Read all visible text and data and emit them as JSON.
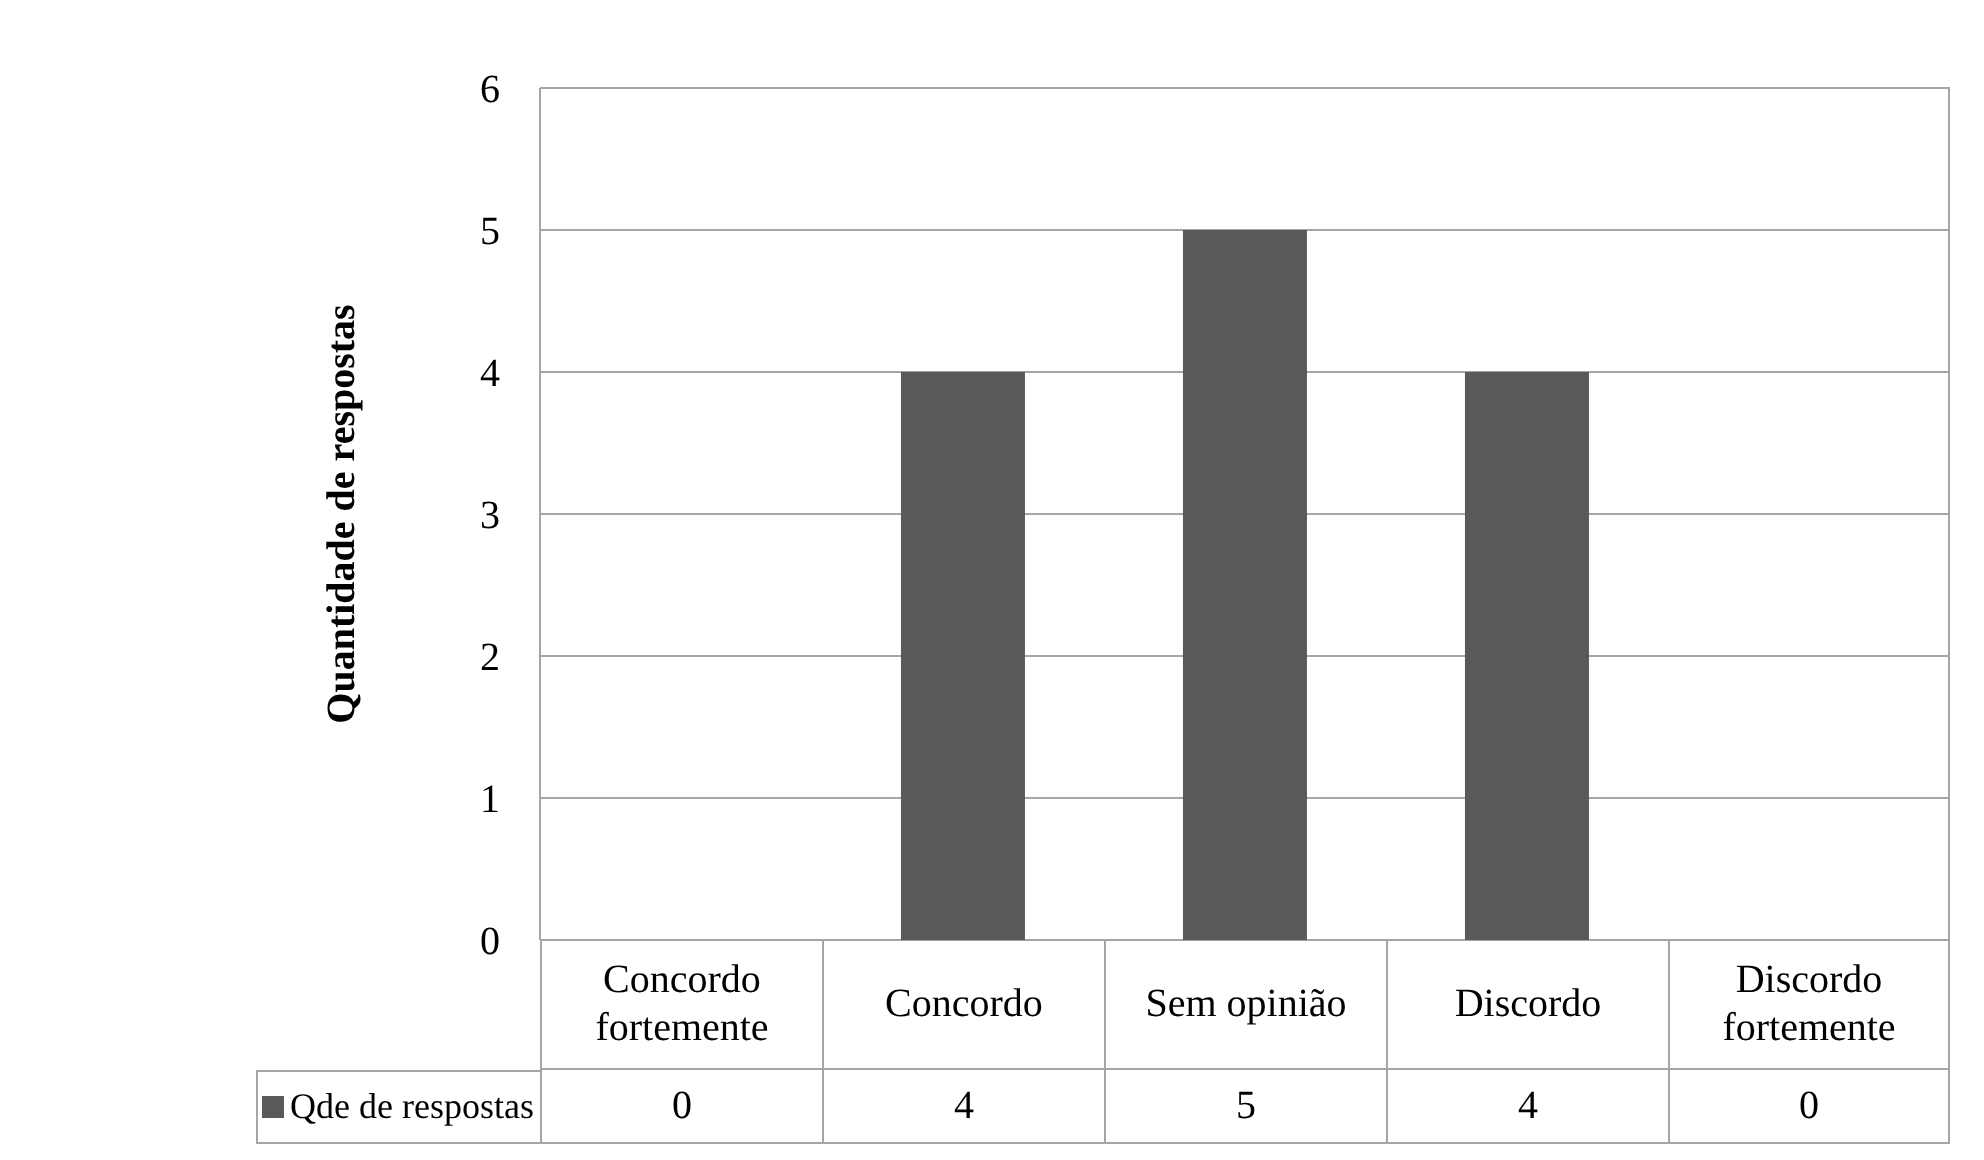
{
  "chart_data": {
    "type": "bar",
    "ylabel": "Quantidade de respostas",
    "categories": [
      "Concordo fortemente",
      "Concordo",
      "Sem opinião",
      "Discordo",
      "Discordo fortemente"
    ],
    "series": [
      {
        "name": "Qde de respostas",
        "color": "#595959",
        "values": [
          0,
          4,
          5,
          4,
          0
        ]
      }
    ],
    "ylim": [
      0,
      6
    ],
    "yticks": [
      0,
      1,
      2,
      3,
      4,
      5,
      6
    ],
    "grid": "y",
    "legend": "bottom left",
    "data_labels": true
  }
}
